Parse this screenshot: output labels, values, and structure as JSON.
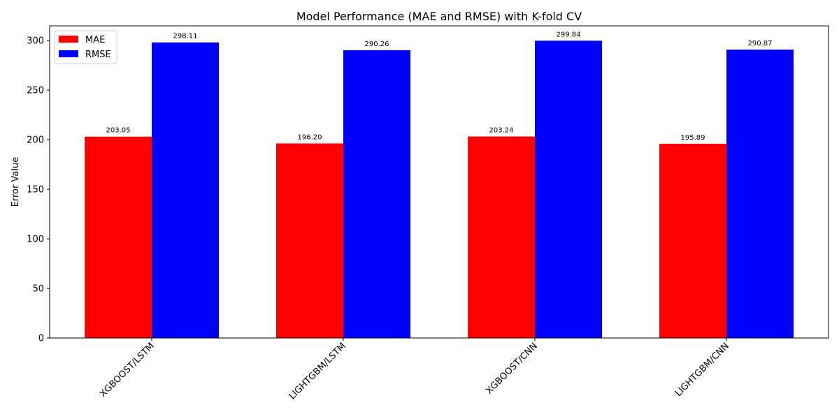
{
  "chart_data": {
    "type": "bar",
    "title": "Model Performance (MAE and RMSE) with K-fold CV",
    "xlabel": "",
    "ylabel": "Error Value",
    "categories": [
      "XGBOOST/LSTM",
      "LIGHTGBM/LSTM",
      "XGBOOST/CNN",
      "LIGHTGBM/CNN"
    ],
    "series": [
      {
        "name": "MAE",
        "color": "#ff0000",
        "values": [
          203.05,
          196.2,
          203.24,
          195.89
        ],
        "labels": [
          "203.05",
          "196.20",
          "203.24",
          "195.89"
        ]
      },
      {
        "name": "RMSE",
        "color": "#0000ff",
        "values": [
          298.11,
          290.26,
          299.84,
          290.87
        ],
        "labels": [
          "298.11",
          "290.26",
          "299.84",
          "290.87"
        ]
      }
    ],
    "ylim": [
      0,
      314.83
    ],
    "yticks": [
      0,
      50,
      100,
      150,
      200,
      250,
      300
    ],
    "ytick_labels": [
      "0",
      "50",
      "100",
      "150",
      "200",
      "250",
      "300"
    ],
    "grid": false,
    "legend": "top-left",
    "xtick_rotation": 45
  }
}
